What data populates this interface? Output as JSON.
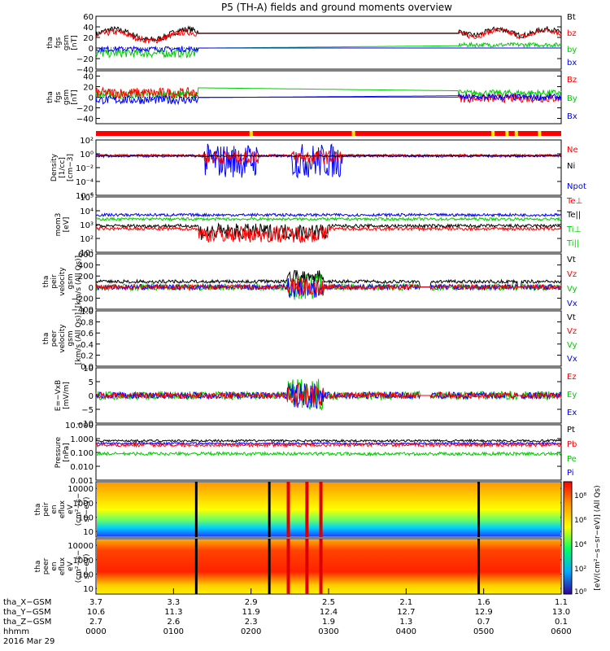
{
  "title": "P5 (TH-A) fields and ground moments overview",
  "colors": {
    "black": "#000000",
    "red": "#ff0000",
    "green": "#00cc00",
    "blue": "#0000ff",
    "yellow": "#ffee00"
  },
  "chart_data": [
    {
      "type": "line",
      "panel": "fgs_gsm_total",
      "ylabel_lines": [
        "tha",
        "fgs",
        "gsm",
        "[nT]"
      ],
      "yticks": [
        "60",
        "40",
        "20",
        "0",
        "−20",
        "−40"
      ],
      "ylim": [
        -40,
        60
      ],
      "legend": [
        {
          "label": "Bt",
          "color": "#000000"
        },
        {
          "label": "bz",
          "color": "#ff0000"
        },
        {
          "label": "by",
          "color": "#00cc00"
        },
        {
          "label": "bx",
          "color": "#0000ff"
        }
      ]
    },
    {
      "type": "line",
      "panel": "fgs_gsm_components",
      "ylabel_lines": [
        "tha",
        "fgs",
        "gsm",
        "[nT]"
      ],
      "yticks": [
        "40",
        "20",
        "0",
        "−20",
        "−40"
      ],
      "ylim": [
        -50,
        50
      ],
      "legend": [
        {
          "label": "Bz",
          "color": "#ff0000"
        },
        {
          "label": "By",
          "color": "#00cc00"
        },
        {
          "label": "Bx",
          "color": "#0000ff"
        }
      ]
    },
    {
      "type": "line",
      "panel": "density",
      "ylabel_lines": [
        "Density",
        "[1/cc]",
        "[cm−3]"
      ],
      "yticks": [
        "10²",
        "10⁰",
        "10⁻²",
        "10⁻⁴",
        "10⁻⁶"
      ],
      "ylim": [
        1e-06,
        100
      ],
      "log": true,
      "legend": [
        {
          "label": "Ne",
          "color": "#ff0000"
        },
        {
          "label": "Ni",
          "color": "#000000"
        },
        {
          "label": "Npot",
          "color": "#0000ff"
        }
      ]
    },
    {
      "type": "line",
      "panel": "temperature",
      "ylabel_lines": [
        "mom3",
        "[eV]"
      ],
      "yticks": [
        "10⁵",
        "10⁴",
        "10³",
        "10²",
        "10¹"
      ],
      "ylim": [
        10,
        100000
      ],
      "log": true,
      "legend": [
        {
          "label": "Te⊥",
          "color": "#ff0000"
        },
        {
          "label": "Te||",
          "color": "#000000"
        },
        {
          "label": "Ti⊥",
          "color": "#00cc00"
        },
        {
          "label": "Ti||",
          "color": "#00cc00"
        }
      ]
    },
    {
      "type": "line",
      "panel": "peir_velocity",
      "ylabel_lines": [
        "tha",
        "peir",
        "velocity",
        "gsm",
        "[km/s (All Qs)]"
      ],
      "yticks": [
        "600",
        "400",
        "200",
        "0",
        "−200",
        "−400"
      ],
      "ylim": [
        -400,
        600
      ],
      "legend": [
        {
          "label": "Vt",
          "color": "#000000"
        },
        {
          "label": "Vz",
          "color": "#ff0000"
        },
        {
          "label": "Vy",
          "color": "#00cc00"
        },
        {
          "label": "Vx",
          "color": "#0000ff"
        }
      ]
    },
    {
      "type": "line",
      "panel": "peer_velocity",
      "ylabel_lines": [
        "tha",
        "peer",
        "velocity",
        "gsm",
        "[km/s (All Qs)]"
      ],
      "yticks": [
        "1.0",
        "0.8",
        "0.6",
        "0.4",
        "0.2",
        "0.0"
      ],
      "ylim": [
        0,
        1
      ],
      "legend": [
        {
          "label": "Vt",
          "color": "#000000"
        },
        {
          "label": "Vz",
          "color": "#ff0000"
        },
        {
          "label": "Vy",
          "color": "#00cc00"
        },
        {
          "label": "Vx",
          "color": "#0000ff"
        }
      ]
    },
    {
      "type": "line",
      "panel": "efield",
      "ylabel_lines": [
        "E=−VxB",
        "[mV/m]"
      ],
      "yticks": [
        "10",
        "5",
        "0",
        "−5",
        "−10"
      ],
      "ylim": [
        -10,
        10
      ],
      "legend": [
        {
          "label": "Ez",
          "color": "#ff0000"
        },
        {
          "label": "Ey",
          "color": "#00cc00"
        },
        {
          "label": "Ex",
          "color": "#0000ff"
        }
      ]
    },
    {
      "type": "line",
      "panel": "pressure",
      "ylabel_lines": [
        "Pressure",
        "[nPa]"
      ],
      "yticks": [
        "10.000",
        "1.000",
        "0.100",
        "0.010",
        "0.001"
      ],
      "ylim": [
        0.001,
        10
      ],
      "log": true,
      "legend": [
        {
          "label": "Pt",
          "color": "#000000"
        },
        {
          "label": "Pb",
          "color": "#ff0000"
        },
        {
          "label": "Pe",
          "color": "#00cc00"
        },
        {
          "label": "Pi",
          "color": "#0000ff"
        }
      ]
    },
    {
      "type": "heatmap",
      "panel": "peir_en_eflux",
      "ylabel_lines": [
        "tha",
        "peir",
        "en",
        "eflux",
        "eV",
        "(cm²−s−",
        "sr−eV)"
      ],
      "yticks": [
        "10000",
        "1000",
        "100",
        "10"
      ]
    },
    {
      "type": "heatmap",
      "panel": "peer_en_eflux",
      "ylabel_lines": [
        "tha",
        "peer",
        "en",
        "eflux",
        "eV",
        "(cm²−s−",
        "sr−eV)"
      ],
      "yticks": [
        "10000",
        "1000",
        "100",
        "10"
      ]
    }
  ],
  "colorbar": {
    "ticks": [
      "10⁸",
      "10⁶",
      "10⁴",
      "10²",
      "10⁰"
    ],
    "label": "[eV/(cm²−s−sr−eV)] (All Qs)"
  },
  "xaxis": {
    "rows": [
      {
        "label": "tha_X−GSM",
        "values": [
          "3.7",
          "3.3",
          "2.9",
          "2.5",
          "2.1",
          "1.6",
          "1.1"
        ]
      },
      {
        "label": "tha_Y−GSM",
        "values": [
          "10.6",
          "11.3",
          "11.9",
          "12.4",
          "12.7",
          "12.9",
          "13.0"
        ]
      },
      {
        "label": "tha_Z−GSM",
        "values": [
          "2.7",
          "2.6",
          "2.3",
          "1.9",
          "1.3",
          "0.7",
          "0.1"
        ]
      },
      {
        "label": "hhmm",
        "values": [
          "0000",
          "0100",
          "0200",
          "0300",
          "0400",
          "0500",
          "0600"
        ]
      }
    ],
    "date": "2016 Mar 29"
  }
}
